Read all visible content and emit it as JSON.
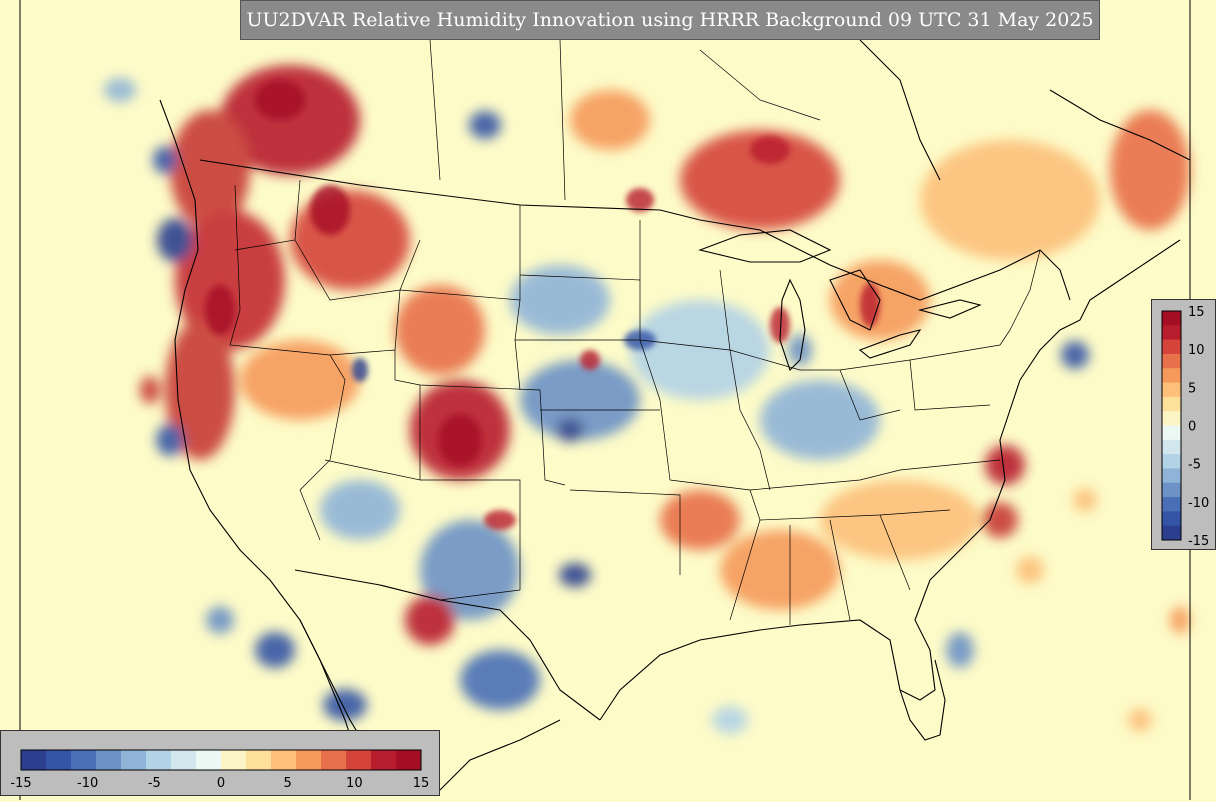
{
  "title": "UU2DVAR Relative Humidity Innovation using HRRR Background 09 UTC 31 May 2025",
  "colorbar": {
    "min": -15,
    "max": 15,
    "horizontal_ticks": [
      "-15",
      "-10",
      "-5",
      "0",
      "5",
      "10",
      "15"
    ],
    "vertical_ticks": [
      "15",
      "10",
      "5",
      "0",
      "-5",
      "-10",
      "-15"
    ],
    "colors": [
      "#2c3f8f",
      "#3654a5",
      "#4a6fb6",
      "#6c92c6",
      "#8fb4d8",
      "#b2d2e6",
      "#d2e6ee",
      "#edf7f4",
      "#fbf4c4",
      "#fde09a",
      "#fcc07a",
      "#f69a5c",
      "#e8704a",
      "#d5443a",
      "#b81d2e",
      "#a50f26"
    ]
  },
  "style": {
    "background": "#fdfbc8",
    "outline": "#000000"
  }
}
